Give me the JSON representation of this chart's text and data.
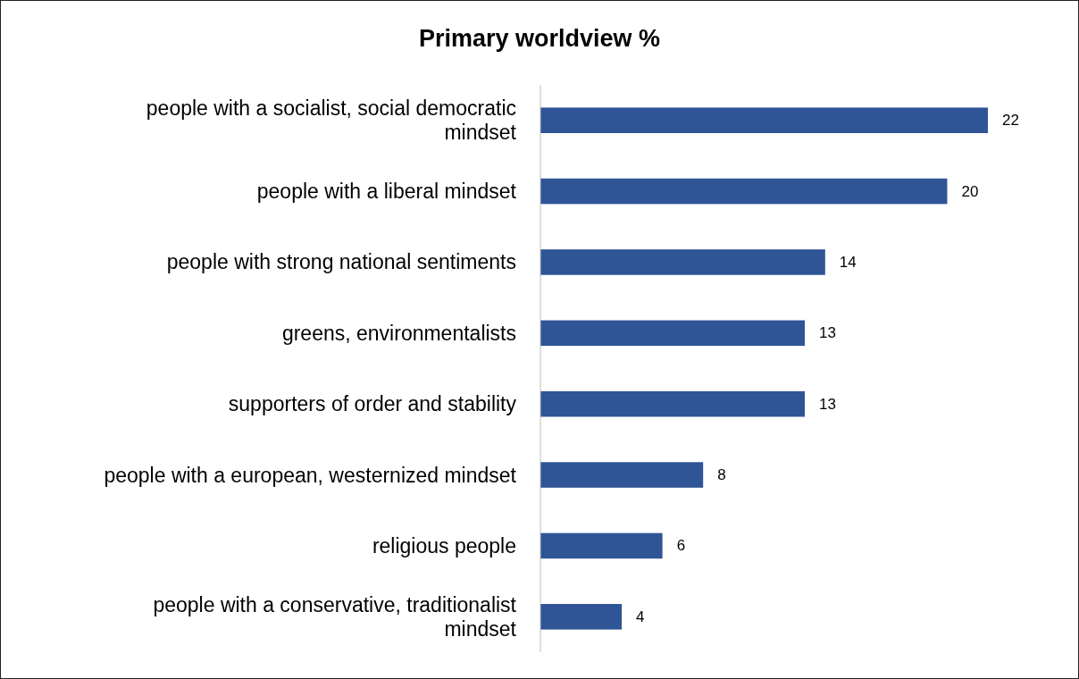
{
  "chart_data": {
    "type": "bar",
    "orientation": "horizontal",
    "title": "Primary worldview %",
    "categories": [
      "people with a socialist, social democratic mindset",
      "people with a liberal mindset",
      "people with strong national sentiments",
      "greens, environmentalists",
      "supporters of order and stability",
      "people with a european, westernized mindset",
      "religious people",
      "people with a conservative, traditionalist mindset"
    ],
    "values": [
      22,
      20,
      14,
      13,
      13,
      8,
      6,
      4
    ],
    "color": "#2f5597",
    "data_labels": true
  }
}
